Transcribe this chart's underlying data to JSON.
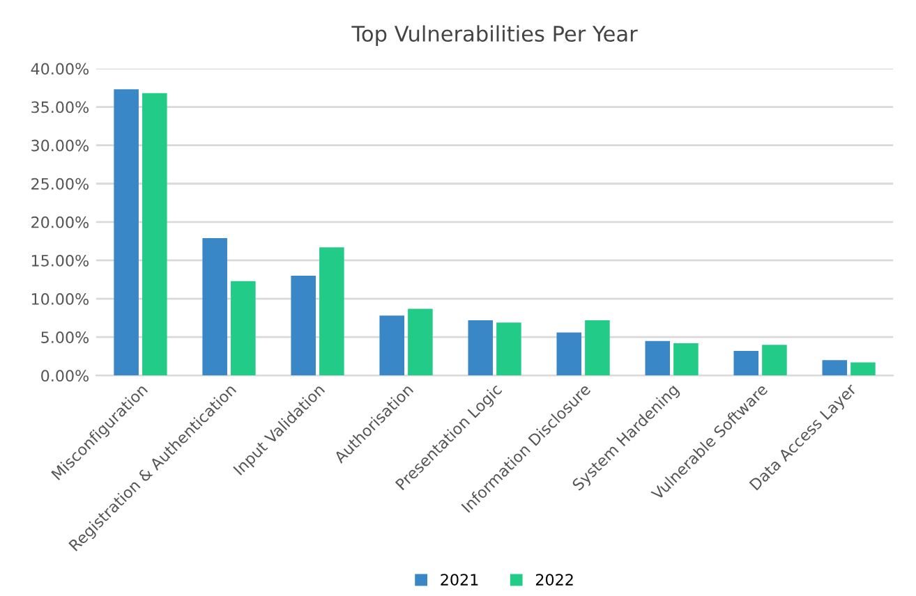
{
  "chart_data": {
    "type": "bar",
    "title": "Top Vulnerabilities Per Year",
    "categories": [
      "Misconfiguration",
      "Registration & Authentication",
      "Input Validation",
      "Authorisation",
      "Presentation Logic",
      "Information Disclosure",
      "System Hardening",
      "Vulnerable Software",
      "Data Access Layer"
    ],
    "series": [
      {
        "name": "2021",
        "color": "#3a87c8",
        "values": [
          37.3,
          17.9,
          13.0,
          7.8,
          7.2,
          5.6,
          4.5,
          3.2,
          2.0
        ]
      },
      {
        "name": "2022",
        "color": "#22cc88",
        "values": [
          36.8,
          12.3,
          16.7,
          8.7,
          6.9,
          7.2,
          4.2,
          4.0,
          1.7
        ]
      }
    ],
    "ylim": [
      0,
      40
    ],
    "yticks": [
      {
        "value": 0,
        "label": "0.00%"
      },
      {
        "value": 5,
        "label": "5.00%"
      },
      {
        "value": 10,
        "label": "10.00%"
      },
      {
        "value": 15,
        "label": "15.00%"
      },
      {
        "value": 20,
        "label": "20.00%"
      },
      {
        "value": 25,
        "label": "25.00%"
      },
      {
        "value": 30,
        "label": "30.00%"
      },
      {
        "value": 35,
        "label": "35.00%"
      },
      {
        "value": 40,
        "label": "40.00%"
      }
    ],
    "grid": "y",
    "legend": "bottom"
  }
}
